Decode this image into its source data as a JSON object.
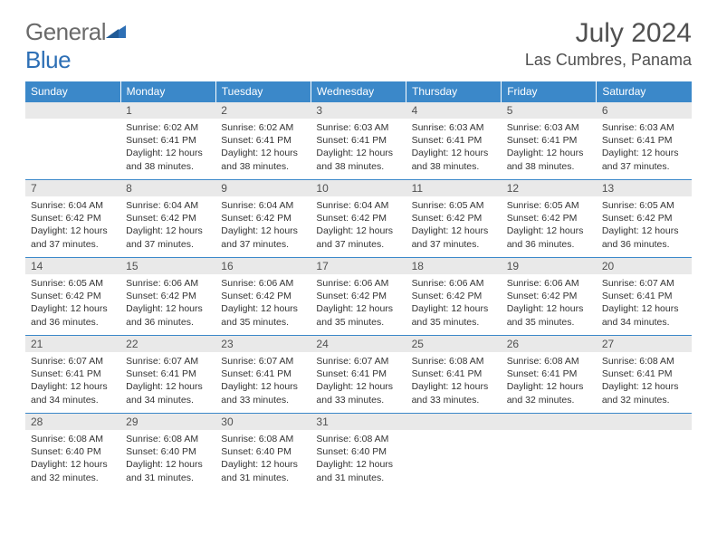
{
  "logo": {
    "word1": "General",
    "word2": "Blue"
  },
  "title": "July 2024",
  "location": "Las Cumbres, Panama",
  "colors": {
    "header_bg": "#3b88c9",
    "header_text": "#ffffff",
    "daynum_bg": "#e9e9e9",
    "text": "#505050",
    "body_text": "#333333",
    "logo_gray": "#6a6a6a",
    "logo_blue": "#2d6fb5"
  },
  "weekdays": [
    "Sunday",
    "Monday",
    "Tuesday",
    "Wednesday",
    "Thursday",
    "Friday",
    "Saturday"
  ],
  "weeks": [
    [
      null,
      {
        "n": "1",
        "sr": "6:02 AM",
        "ss": "6:41 PM",
        "dh": "12",
        "dm": "38"
      },
      {
        "n": "2",
        "sr": "6:02 AM",
        "ss": "6:41 PM",
        "dh": "12",
        "dm": "38"
      },
      {
        "n": "3",
        "sr": "6:03 AM",
        "ss": "6:41 PM",
        "dh": "12",
        "dm": "38"
      },
      {
        "n": "4",
        "sr": "6:03 AM",
        "ss": "6:41 PM",
        "dh": "12",
        "dm": "38"
      },
      {
        "n": "5",
        "sr": "6:03 AM",
        "ss": "6:41 PM",
        "dh": "12",
        "dm": "38"
      },
      {
        "n": "6",
        "sr": "6:03 AM",
        "ss": "6:41 PM",
        "dh": "12",
        "dm": "37"
      }
    ],
    [
      {
        "n": "7",
        "sr": "6:04 AM",
        "ss": "6:42 PM",
        "dh": "12",
        "dm": "37"
      },
      {
        "n": "8",
        "sr": "6:04 AM",
        "ss": "6:42 PM",
        "dh": "12",
        "dm": "37"
      },
      {
        "n": "9",
        "sr": "6:04 AM",
        "ss": "6:42 PM",
        "dh": "12",
        "dm": "37"
      },
      {
        "n": "10",
        "sr": "6:04 AM",
        "ss": "6:42 PM",
        "dh": "12",
        "dm": "37"
      },
      {
        "n": "11",
        "sr": "6:05 AM",
        "ss": "6:42 PM",
        "dh": "12",
        "dm": "37"
      },
      {
        "n": "12",
        "sr": "6:05 AM",
        "ss": "6:42 PM",
        "dh": "12",
        "dm": "36"
      },
      {
        "n": "13",
        "sr": "6:05 AM",
        "ss": "6:42 PM",
        "dh": "12",
        "dm": "36"
      }
    ],
    [
      {
        "n": "14",
        "sr": "6:05 AM",
        "ss": "6:42 PM",
        "dh": "12",
        "dm": "36"
      },
      {
        "n": "15",
        "sr": "6:06 AM",
        "ss": "6:42 PM",
        "dh": "12",
        "dm": "36"
      },
      {
        "n": "16",
        "sr": "6:06 AM",
        "ss": "6:42 PM",
        "dh": "12",
        "dm": "35"
      },
      {
        "n": "17",
        "sr": "6:06 AM",
        "ss": "6:42 PM",
        "dh": "12",
        "dm": "35"
      },
      {
        "n": "18",
        "sr": "6:06 AM",
        "ss": "6:42 PM",
        "dh": "12",
        "dm": "35"
      },
      {
        "n": "19",
        "sr": "6:06 AM",
        "ss": "6:42 PM",
        "dh": "12",
        "dm": "35"
      },
      {
        "n": "20",
        "sr": "6:07 AM",
        "ss": "6:41 PM",
        "dh": "12",
        "dm": "34"
      }
    ],
    [
      {
        "n": "21",
        "sr": "6:07 AM",
        "ss": "6:41 PM",
        "dh": "12",
        "dm": "34"
      },
      {
        "n": "22",
        "sr": "6:07 AM",
        "ss": "6:41 PM",
        "dh": "12",
        "dm": "34"
      },
      {
        "n": "23",
        "sr": "6:07 AM",
        "ss": "6:41 PM",
        "dh": "12",
        "dm": "33"
      },
      {
        "n": "24",
        "sr": "6:07 AM",
        "ss": "6:41 PM",
        "dh": "12",
        "dm": "33"
      },
      {
        "n": "25",
        "sr": "6:08 AM",
        "ss": "6:41 PM",
        "dh": "12",
        "dm": "33"
      },
      {
        "n": "26",
        "sr": "6:08 AM",
        "ss": "6:41 PM",
        "dh": "12",
        "dm": "32"
      },
      {
        "n": "27",
        "sr": "6:08 AM",
        "ss": "6:41 PM",
        "dh": "12",
        "dm": "32"
      }
    ],
    [
      {
        "n": "28",
        "sr": "6:08 AM",
        "ss": "6:40 PM",
        "dh": "12",
        "dm": "32"
      },
      {
        "n": "29",
        "sr": "6:08 AM",
        "ss": "6:40 PM",
        "dh": "12",
        "dm": "31"
      },
      {
        "n": "30",
        "sr": "6:08 AM",
        "ss": "6:40 PM",
        "dh": "12",
        "dm": "31"
      },
      {
        "n": "31",
        "sr": "6:08 AM",
        "ss": "6:40 PM",
        "dh": "12",
        "dm": "31"
      },
      null,
      null,
      null
    ]
  ],
  "labels": {
    "sunrise": "Sunrise:",
    "sunset": "Sunset:",
    "daylight_prefix": "Daylight:",
    "hours_word": "hours",
    "and_word": "and",
    "minutes_word": "minutes."
  }
}
